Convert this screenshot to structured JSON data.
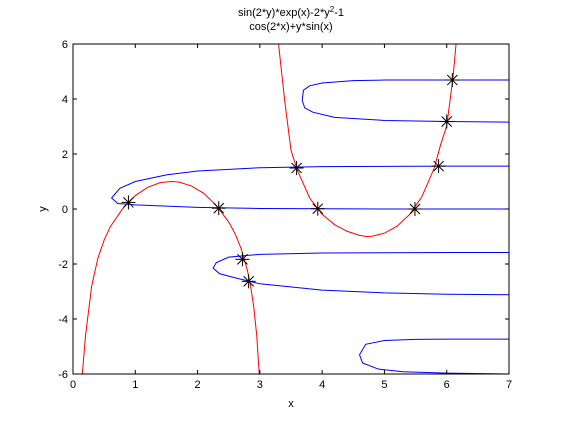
{
  "chart_data": {
    "type": "line",
    "title_lines": [
      {
        "base": "sin(2*y)*exp(x)-2*y",
        "sup": "2",
        "tail": "-1"
      },
      {
        "base": "cos(2*x)+y*sin(x)",
        "sup": "",
        "tail": ""
      }
    ],
    "xlabel": "x",
    "ylabel": "y",
    "xlim": [
      0,
      7
    ],
    "ylim": [
      -6,
      6
    ],
    "x_ticks": [
      0,
      1,
      2,
      3,
      4,
      5,
      6,
      7
    ],
    "y_ticks": [
      -6,
      -4,
      -2,
      0,
      2,
      4,
      6
    ],
    "x_tick_labels": [
      "0",
      "1",
      "2",
      "3",
      "4",
      "5",
      "6",
      "7"
    ],
    "y_tick_labels": [
      "-6",
      "-4",
      "-2",
      "0",
      "2",
      "4",
      "6"
    ],
    "grid": false,
    "colors": {
      "curve1": "#0000ff",
      "curve2": "#ff0000",
      "markers": "#000000",
      "axes": "#000000",
      "background": "#ffffff"
    },
    "series": [
      {
        "equation": "sin(2*y)*exp(x)-2*y^2-1 = 0",
        "color": "#0000ff",
        "branches": [
          {
            "x": [
              7.0,
              6.0,
              5.0,
              4.5,
              4.0,
              3.8,
              3.7,
              3.68,
              3.72,
              3.85,
              4.2,
              5.0,
              6.0,
              7.0
            ],
            "y": [
              4.69,
              4.69,
              4.69,
              4.67,
              4.58,
              4.48,
              4.32,
              3.95,
              3.68,
              3.52,
              3.33,
              3.22,
              3.18,
              3.16
            ]
          },
          {
            "x": [
              7.0,
              6.0,
              5.0,
              4.0,
              3.0,
              2.0,
              1.5,
              1.0,
              0.75,
              0.62,
              0.72,
              1.0,
              2.0,
              3.0,
              4.0,
              5.0,
              6.0,
              7.0
            ],
            "y": [
              1.56,
              1.56,
              1.55,
              1.54,
              1.5,
              1.38,
              1.24,
              1.0,
              0.75,
              0.4,
              0.2,
              0.15,
              0.06,
              0.02,
              0.01,
              0.0,
              0.0,
              0.0
            ]
          },
          {
            "x": [
              7.0,
              6.0,
              5.0,
              4.0,
              3.0,
              2.5,
              2.3,
              2.25,
              2.35,
              2.6,
              3.0,
              4.0,
              5.0,
              6.0,
              7.0
            ],
            "y": [
              -1.58,
              -1.58,
              -1.59,
              -1.6,
              -1.65,
              -1.75,
              -1.95,
              -2.15,
              -2.35,
              -2.5,
              -2.72,
              -2.95,
              -3.05,
              -3.1,
              -3.12
            ]
          },
          {
            "x": [
              7.0,
              6.0,
              5.5,
              5.0,
              4.7,
              4.6,
              4.65,
              4.9,
              5.3,
              6.0,
              7.0
            ],
            "y": [
              -4.73,
              -4.73,
              -4.74,
              -4.78,
              -4.92,
              -5.3,
              -5.6,
              -5.82,
              -5.92,
              -5.97,
              -6.0
            ]
          }
        ]
      },
      {
        "equation": "cos(2*x)+y*sin(x) = 0",
        "color": "#ff0000",
        "branches": [
          {
            "x": [
              0.15,
              0.2,
              0.3,
              0.4,
              0.5,
              0.6,
              0.8,
              1.0,
              1.2,
              1.4,
              1.5708,
              1.7,
              1.9,
              2.1,
              2.3,
              2.5,
              2.6,
              2.7,
              2.8,
              2.85,
              2.9,
              2.95,
              2.99
            ],
            "y": [
              -6.0,
              -4.62,
              -2.8,
              -1.78,
              -1.13,
              -0.64,
              0.02,
              0.49,
              0.79,
              0.96,
              1.0,
              0.98,
              0.84,
              0.57,
              0.13,
              -0.47,
              -0.89,
              -1.44,
              -2.23,
              -2.79,
              -3.52,
              -4.6,
              -6.0
            ]
          },
          {
            "x": [
              3.3,
              3.4,
              3.5,
              3.6,
              3.8,
              4.0,
              4.2,
              4.4,
              4.6,
              4.7124,
              4.8,
              5.0,
              5.2,
              5.4,
              5.6,
              5.8,
              5.9,
              6.0,
              6.1,
              6.15,
              6.2
            ],
            "y": [
              6.0,
              3.91,
              2.14,
              1.42,
              0.4,
              -0.19,
              -0.57,
              -0.81,
              -0.96,
              -1.0,
              -0.99,
              -0.88,
              -0.63,
              -0.21,
              0.44,
              1.49,
              2.32,
              3.02,
              4.76,
              6.0,
              6.0
            ]
          }
        ]
      }
    ],
    "intersections": [
      {
        "x": 0.89,
        "y": 0.24
      },
      {
        "x": 2.34,
        "y": 0.03
      },
      {
        "x": 3.93,
        "y": 0.01
      },
      {
        "x": 5.49,
        "y": 0.0
      },
      {
        "x": 3.59,
        "y": 1.49
      },
      {
        "x": 5.87,
        "y": 1.56
      },
      {
        "x": 6.0,
        "y": 3.18
      },
      {
        "x": 6.09,
        "y": 4.69
      },
      {
        "x": 2.72,
        "y": -1.83
      },
      {
        "x": 2.82,
        "y": -2.63
      }
    ]
  }
}
